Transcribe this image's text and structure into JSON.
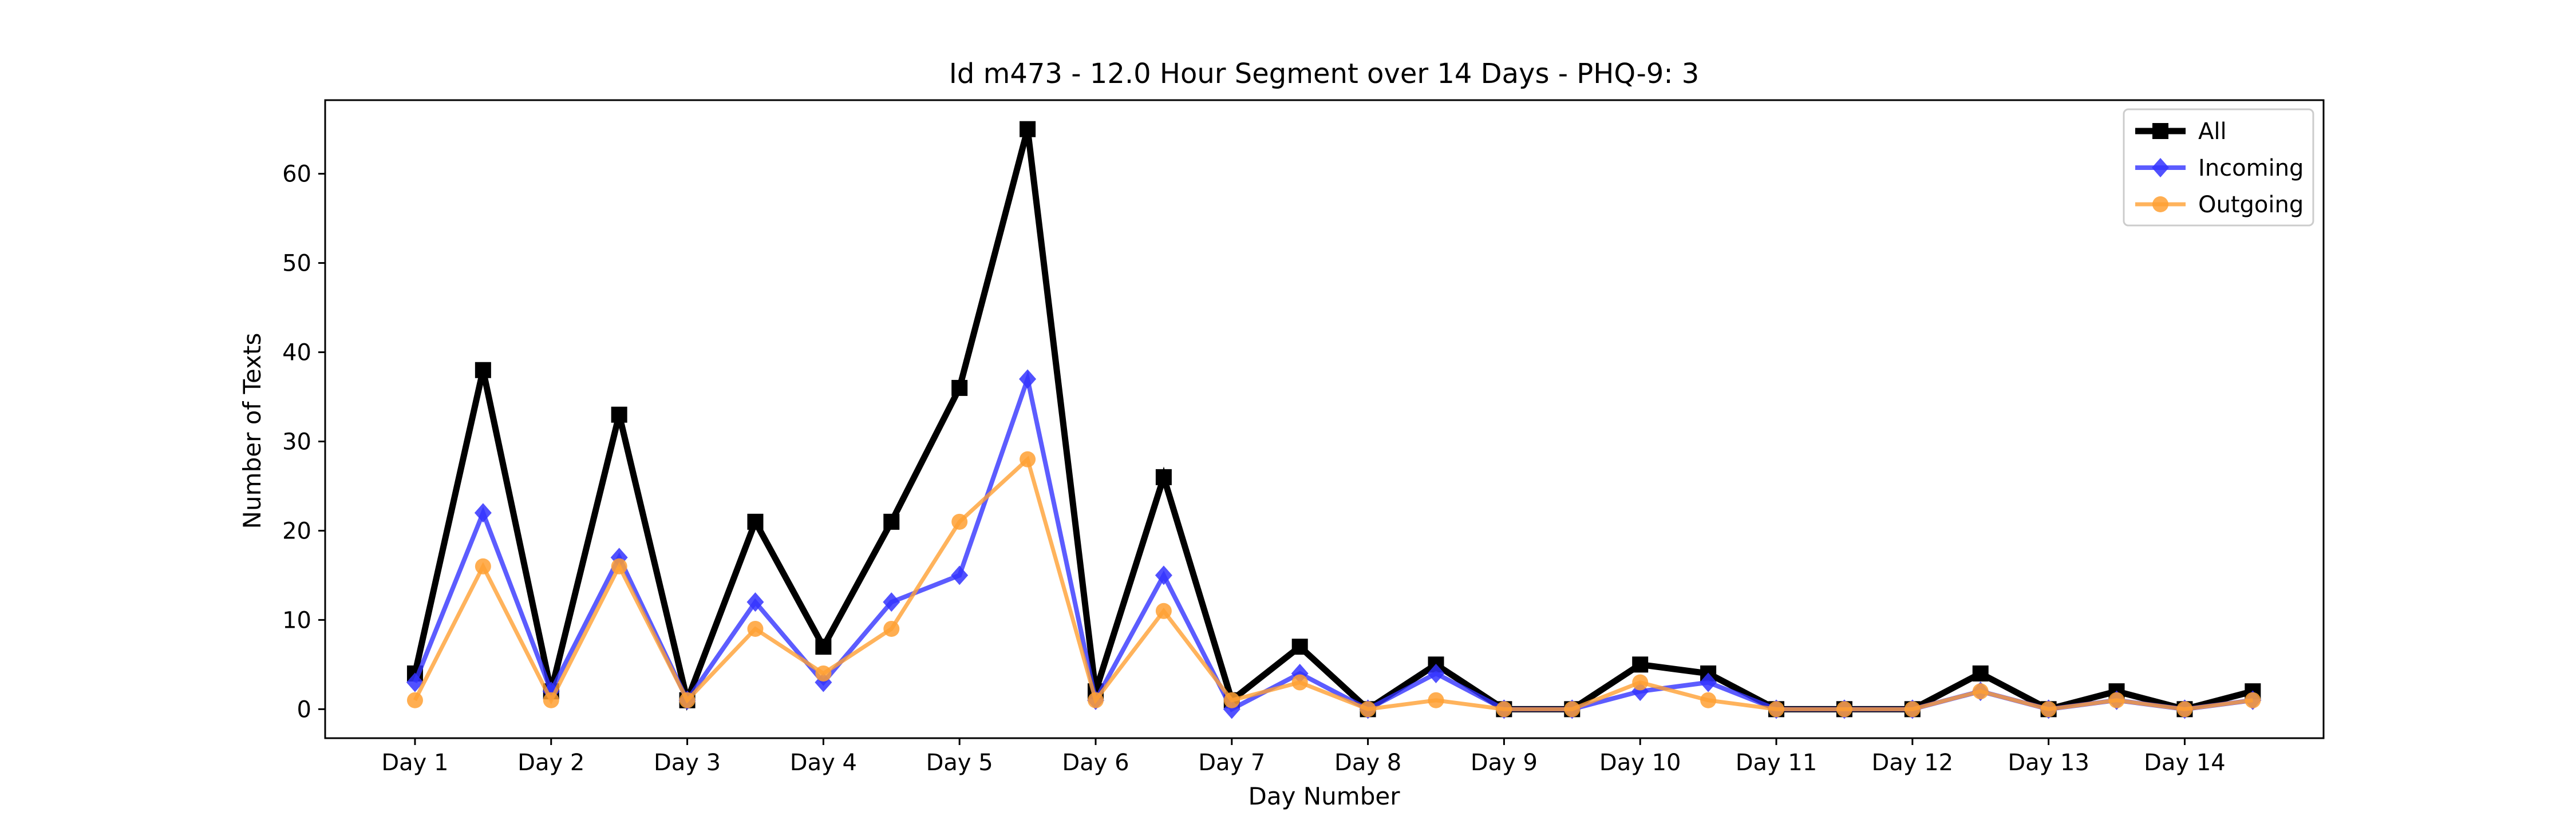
{
  "chart_data": {
    "type": "line",
    "title": "Id m473 - 12.0 Hour Segment over 14 Days - PHQ-9: 3",
    "xlabel": "Day Number",
    "ylabel": "Number of Texts",
    "x": [
      1,
      1.5,
      2,
      2.5,
      3,
      3.5,
      4,
      4.5,
      5,
      5.5,
      6,
      6.5,
      7,
      7.5,
      8,
      8.5,
      9,
      9.5,
      10,
      10.5,
      11,
      11.5,
      12,
      12.5,
      13,
      13.5,
      14,
      14.5
    ],
    "xticks": [
      1,
      2,
      3,
      4,
      5,
      6,
      7,
      8,
      9,
      10,
      11,
      12,
      13,
      14
    ],
    "xtick_labels": [
      "Day 1",
      "Day 2",
      "Day 3",
      "Day 4",
      "Day 5",
      "Day 6",
      "Day 7",
      "Day 8",
      "Day 9",
      "Day 10",
      "Day 11",
      "Day 12",
      "Day 13",
      "Day 14"
    ],
    "yticks": [
      0,
      10,
      20,
      30,
      40,
      50,
      60
    ],
    "xlim": [
      0.34,
      15.02
    ],
    "ylim": [
      -3.25,
      68.25
    ],
    "grid": false,
    "legend_position": "top-right",
    "series": [
      {
        "name": "All",
        "color": "#000000",
        "marker": "square",
        "values": [
          4,
          38,
          2,
          33,
          1,
          21,
          7,
          21,
          36,
          65,
          2,
          26,
          1,
          7,
          0,
          5,
          0,
          0,
          5,
          4,
          0,
          0,
          0,
          4,
          0,
          2,
          0,
          2
        ]
      },
      {
        "name": "Incoming",
        "color": "#3333ff",
        "marker": "diamond",
        "values": [
          3,
          22,
          2,
          17,
          1,
          12,
          3,
          12,
          15,
          37,
          1,
          15,
          0,
          4,
          0,
          4,
          0,
          0,
          2,
          3,
          0,
          0,
          0,
          2,
          0,
          1,
          0,
          1
        ]
      },
      {
        "name": "Outgoing",
        "color": "#ffa033",
        "marker": "circle",
        "values": [
          1,
          16,
          1,
          16,
          1,
          9,
          4,
          9,
          21,
          28,
          1,
          11,
          1,
          3,
          0,
          1,
          0,
          0,
          3,
          1,
          0,
          0,
          0,
          2,
          0,
          1,
          0,
          1
        ]
      }
    ]
  }
}
